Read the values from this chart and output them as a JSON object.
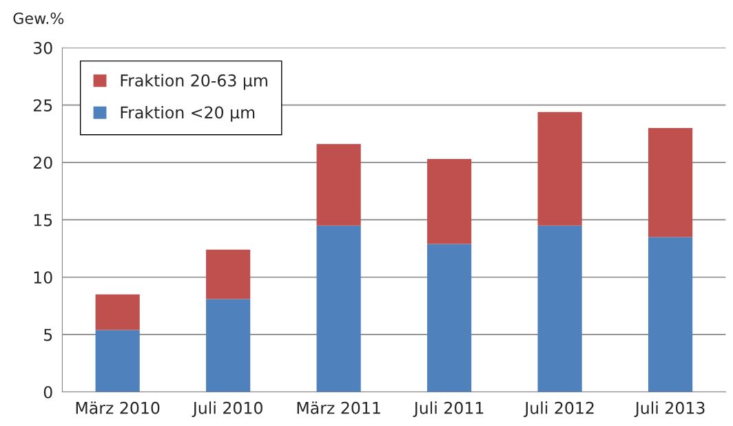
{
  "chart_data": {
    "type": "bar",
    "ylabel": "Gew.%",
    "categories": [
      "März 2010",
      "Juli 2010",
      "März 2011",
      "Juli 2011",
      "Juli 2012",
      "Juli 2013"
    ],
    "stacked": true,
    "series": [
      {
        "name": "Fraktion <20 µm",
        "color": "#4f81bd",
        "values": [
          5.4,
          8.1,
          14.5,
          12.9,
          14.5,
          13.5
        ]
      },
      {
        "name": "Fraktion 20-63 µm",
        "color": "#c0504d",
        "values": [
          3.1,
          4.3,
          7.1,
          7.4,
          9.9,
          9.5
        ]
      }
    ],
    "ylim": [
      0,
      30
    ],
    "yticks": [
      0,
      5,
      10,
      15,
      20,
      25,
      30
    ],
    "grid": "y",
    "legend": "top left"
  }
}
